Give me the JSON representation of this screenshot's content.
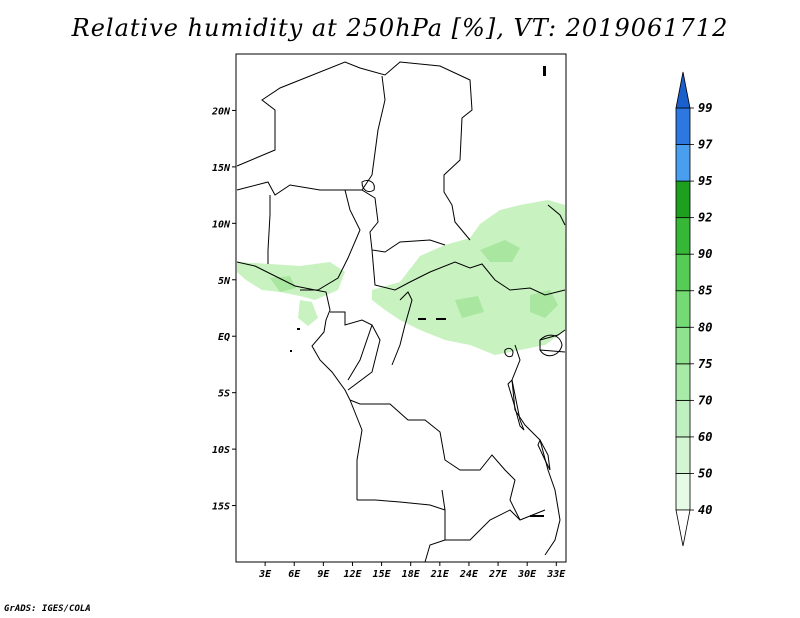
{
  "title": "Relative humidity at 250hPa [%], VT: 2019061712",
  "credit": "GrADS: IGES/COLA",
  "map": {
    "lat_ticks": [
      {
        "label": "20N",
        "lat": 20
      },
      {
        "label": "15N",
        "lat": 15
      },
      {
        "label": "10N",
        "lat": 10
      },
      {
        "label": "5N",
        "lat": 5
      },
      {
        "label": "EQ",
        "lat": 0
      },
      {
        "label": "5S",
        "lat": -5
      },
      {
        "label": "10S",
        "lat": -10
      },
      {
        "label": "15S",
        "lat": -15
      }
    ],
    "lon_ticks": [
      {
        "label": "3E",
        "lon": 3
      },
      {
        "label": "6E",
        "lon": 6
      },
      {
        "label": "9E",
        "lon": 9
      },
      {
        "label": "12E",
        "lon": 12
      },
      {
        "label": "15E",
        "lon": 15
      },
      {
        "label": "18E",
        "lon": 18
      },
      {
        "label": "21E",
        "lon": 21
      },
      {
        "label": "24E",
        "lon": 24
      },
      {
        "label": "27E",
        "lon": 27
      },
      {
        "label": "30E",
        "lon": 30
      },
      {
        "label": "33E",
        "lon": 33
      }
    ],
    "lon_range": [
      0,
      34
    ],
    "lat_range": [
      -20,
      25
    ]
  },
  "colorbar": {
    "levels": [
      "40",
      "50",
      "60",
      "70",
      "75",
      "80",
      "85",
      "90",
      "92",
      "95",
      "97",
      "99"
    ],
    "colors": [
      "#ffffff",
      "#e6fbe6",
      "#d2f5d2",
      "#bff0bf",
      "#a8eaa8",
      "#8fe38f",
      "#74db74",
      "#55cc55",
      "#36b836",
      "#1ea01e",
      "#4a9ef0",
      "#2d78e0",
      "#1a5fcc"
    ]
  }
}
